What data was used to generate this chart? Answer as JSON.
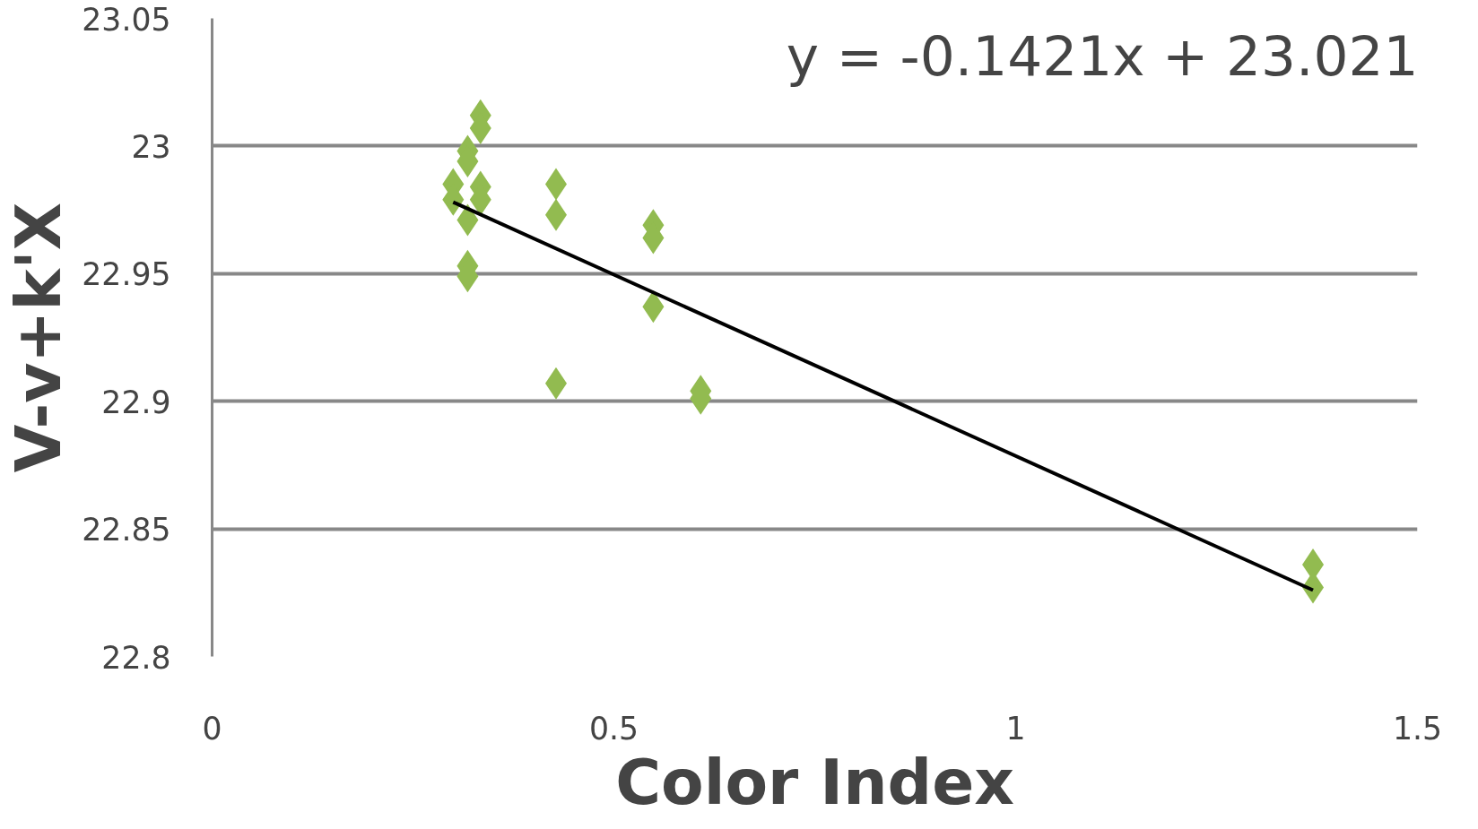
{
  "chart_data": {
    "type": "scatter",
    "xlabel": "Color Index",
    "ylabel": "V-v+k'X",
    "marker": "diamond",
    "grid": "y",
    "xlim": [
      0,
      1.5
    ],
    "xticks": [
      0,
      0.5,
      1,
      1.5
    ],
    "ylim": [
      22.8,
      23.05
    ],
    "yticks": [
      22.8,
      22.85,
      22.9,
      22.95,
      23,
      23.05
    ],
    "annotations": [
      "y = -0.1421x + 23.021"
    ],
    "series": [
      {
        "color": "#92bb50",
        "x": [
          0.334,
          0.334,
          0.318,
          0.318,
          0.3,
          0.3,
          0.334,
          0.334,
          0.318,
          0.318,
          0.318,
          0.428,
          0.428,
          0.549,
          0.549,
          0.549,
          0.428,
          0.608,
          0.608,
          1.37,
          1.37
        ],
        "values": [
          23.012,
          23.007,
          22.998,
          22.994,
          22.985,
          22.979,
          22.984,
          22.979,
          22.971,
          22.953,
          22.949,
          22.985,
          22.973,
          22.969,
          22.964,
          22.937,
          22.907,
          22.904,
          22.901,
          22.836,
          22.827
        ]
      },
      {
        "type": "line",
        "color": "#000000",
        "marker": "none",
        "x": [
          0.3,
          1.37
        ],
        "values": [
          22.978,
          22.826
        ]
      }
    ]
  }
}
